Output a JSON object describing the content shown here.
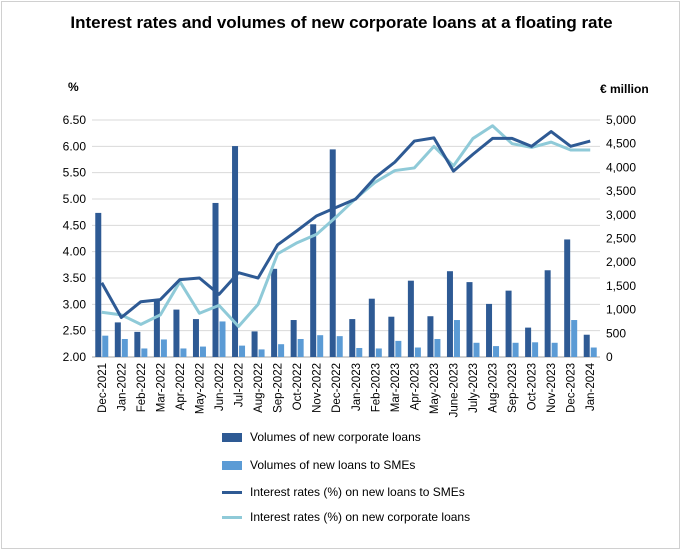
{
  "chart_data": {
    "type": "bar",
    "title": "Interest rates and volumes of new corporate loans at a floating rate",
    "y_left_label": "%",
    "y_right_label": "€ million",
    "y_left_lim": [
      2.0,
      6.5
    ],
    "y_left_ticks": [
      "2.00",
      "2.50",
      "3.00",
      "3.50",
      "4.00",
      "4.50",
      "5.00",
      "5.50",
      "6.00",
      "6.50"
    ],
    "y_right_lim": [
      0,
      5000
    ],
    "y_right_ticks": [
      "0",
      "500",
      "1,000",
      "1,500",
      "2,000",
      "2,500",
      "3,000",
      "3,500",
      "4,000",
      "4,500",
      "5,000"
    ],
    "grid": true,
    "legend_position": "bottom",
    "categories": [
      "Dec-2021",
      "Jan-2022",
      "Feb-2022",
      "Mar-2022",
      "Apr-2022",
      "May-2022",
      "Jun-2022",
      "Jul-2022",
      "Aug-2022",
      "Sep-2022",
      "Oct-2022",
      "Nov-2022",
      "Dec-2022",
      "Jan-2023",
      "Feb-2023",
      "Mar-2023",
      "Apr-2023",
      "May-2023",
      "June-2023",
      "July-2023",
      "Aug-2023",
      "Sep-2023",
      "Oct-2023",
      "Nov-2023",
      "Dec-2023",
      "Jan-2024"
    ],
    "series": [
      {
        "name": "Volumes of new corporate loans",
        "kind": "bar",
        "axis": "right",
        "color": "#2e5a94",
        "values": [
          3040,
          730,
          530,
          1200,
          1000,
          800,
          3250,
          4450,
          540,
          1860,
          780,
          2800,
          4380,
          800,
          1230,
          850,
          1610,
          860,
          1810,
          1580,
          1120,
          1400,
          620,
          1830,
          2480,
          470
        ]
      },
      {
        "name": "Volumes of new loans to SMEs",
        "kind": "bar",
        "axis": "right",
        "color": "#5b9bd5",
        "values": [
          450,
          380,
          180,
          370,
          180,
          220,
          750,
          240,
          160,
          270,
          380,
          460,
          440,
          190,
          180,
          340,
          200,
          380,
          780,
          300,
          230,
          300,
          310,
          300,
          780,
          200
        ]
      },
      {
        "name": "Interest rates (%) on new loans to SMEs",
        "kind": "line",
        "axis": "left",
        "color": "#2e5a94",
        "values": [
          3.41,
          2.75,
          3.05,
          3.09,
          3.47,
          3.5,
          3.19,
          3.6,
          3.5,
          4.13,
          4.4,
          4.68,
          4.84,
          5.0,
          5.41,
          5.7,
          6.1,
          6.16,
          5.53,
          5.85,
          6.15,
          6.15,
          6.0,
          6.28,
          6.0,
          6.1
        ]
      },
      {
        "name": "Interest rates (%) on new corporate loans",
        "kind": "line",
        "axis": "left",
        "color": "#8fcad8",
        "values": [
          2.85,
          2.8,
          2.62,
          2.8,
          3.43,
          2.83,
          2.98,
          2.58,
          3.0,
          3.96,
          4.17,
          4.33,
          4.66,
          5.01,
          5.32,
          5.54,
          5.59,
          6.0,
          5.63,
          6.15,
          6.39,
          6.05,
          5.98,
          6.08,
          5.93,
          5.93
        ]
      }
    ]
  }
}
